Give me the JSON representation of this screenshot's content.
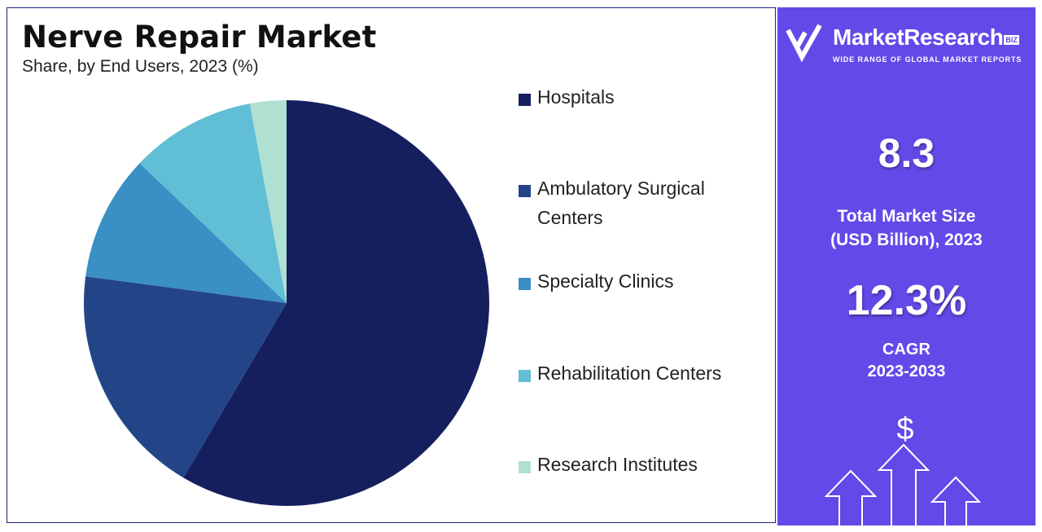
{
  "chart_data": {
    "type": "pie",
    "title": "Nerve Repair Market",
    "subtitle": "Share, by End Users, 2023 (%)",
    "categories": [
      "Hospitals",
      "Ambulatory Surgical Centers",
      "Specialty Clinics",
      "Rehabilitation Centers",
      "Research Institutes"
    ],
    "values": [
      58.5,
      18.6,
      10.0,
      10.0,
      2.9
    ],
    "colors": [
      "#161f5e",
      "#234588",
      "#3a8fc4",
      "#60bfd5",
      "#b0e0d2"
    ],
    "start_angle_deg": 0,
    "direction": "clockwise",
    "legend_position": "right"
  },
  "side_panel": {
    "brand_name": "MarketResearch",
    "brand_badge": "BIZ",
    "brand_tagline": "WIDE RANGE OF GLOBAL MARKET REPORTS",
    "market_size_value": "8.3",
    "market_size_label_line1": "Total Market Size",
    "market_size_label_line2": "(USD Billion), 2023",
    "cagr_value": "12.3%",
    "cagr_label_line1": "CAGR",
    "cagr_label_line2": "2023-2033",
    "currency_symbol": "$",
    "background_color": "#6448e8"
  }
}
